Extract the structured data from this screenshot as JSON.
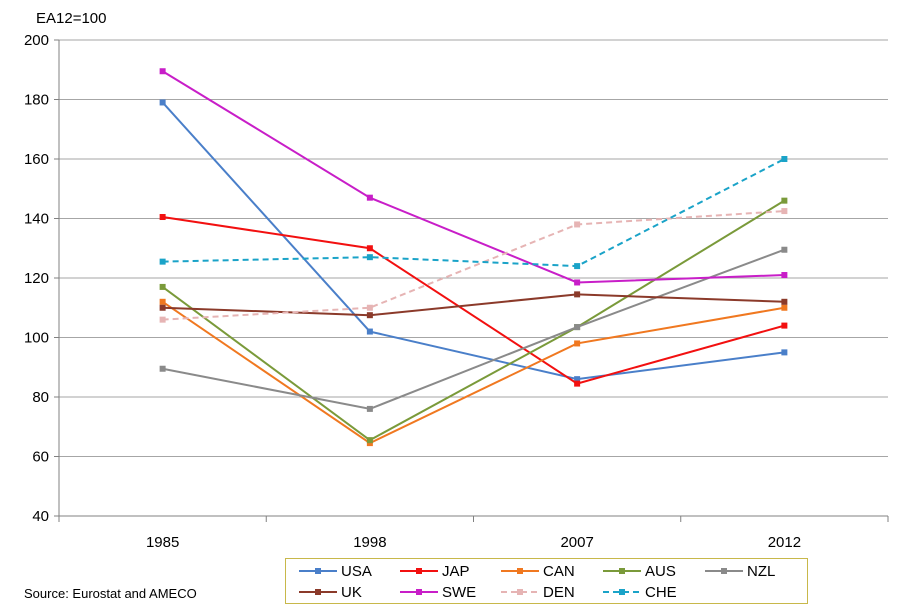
{
  "source_note": "Source: Eurostat and AMECO",
  "chart_data": {
    "type": "line",
    "ylabel": "EA12=100",
    "xlabel": "",
    "title": "",
    "categories": [
      "1985",
      "1998",
      "2007",
      "2012"
    ],
    "ylim": [
      40,
      200
    ],
    "yticks": [
      40,
      60,
      80,
      100,
      120,
      140,
      160,
      180,
      200
    ],
    "grid": true,
    "legend_position": "bottom",
    "series": [
      {
        "name": "USA",
        "values": [
          179,
          102,
          86,
          95
        ],
        "color": "#4a7fc9",
        "dashed": false
      },
      {
        "name": "JAP",
        "values": [
          140.5,
          130,
          84.5,
          104
        ],
        "color": "#f21010",
        "dashed": false
      },
      {
        "name": "CAN",
        "values": [
          112,
          64.5,
          98,
          110
        ],
        "color": "#f07820",
        "dashed": false
      },
      {
        "name": "AUS",
        "values": [
          117,
          65.5,
          103.5,
          146
        ],
        "color": "#7a9a3a",
        "dashed": false
      },
      {
        "name": "NZL",
        "values": [
          89.5,
          76,
          103.5,
          129.5
        ],
        "color": "#8a8a8a",
        "dashed": false
      },
      {
        "name": "UK",
        "values": [
          110,
          107.5,
          114.5,
          112
        ],
        "color": "#8b3a2a",
        "dashed": false
      },
      {
        "name": "SWE",
        "values": [
          189.5,
          147,
          118.5,
          121
        ],
        "color": "#c81ec8",
        "dashed": false
      },
      {
        "name": "DEN",
        "values": [
          106,
          110,
          138,
          142.5
        ],
        "color": "#e6b4b4",
        "dashed": true
      },
      {
        "name": "CHE",
        "values": [
          125.5,
          127,
          124,
          160
        ],
        "color": "#1aa3c8",
        "dashed": true
      }
    ]
  }
}
